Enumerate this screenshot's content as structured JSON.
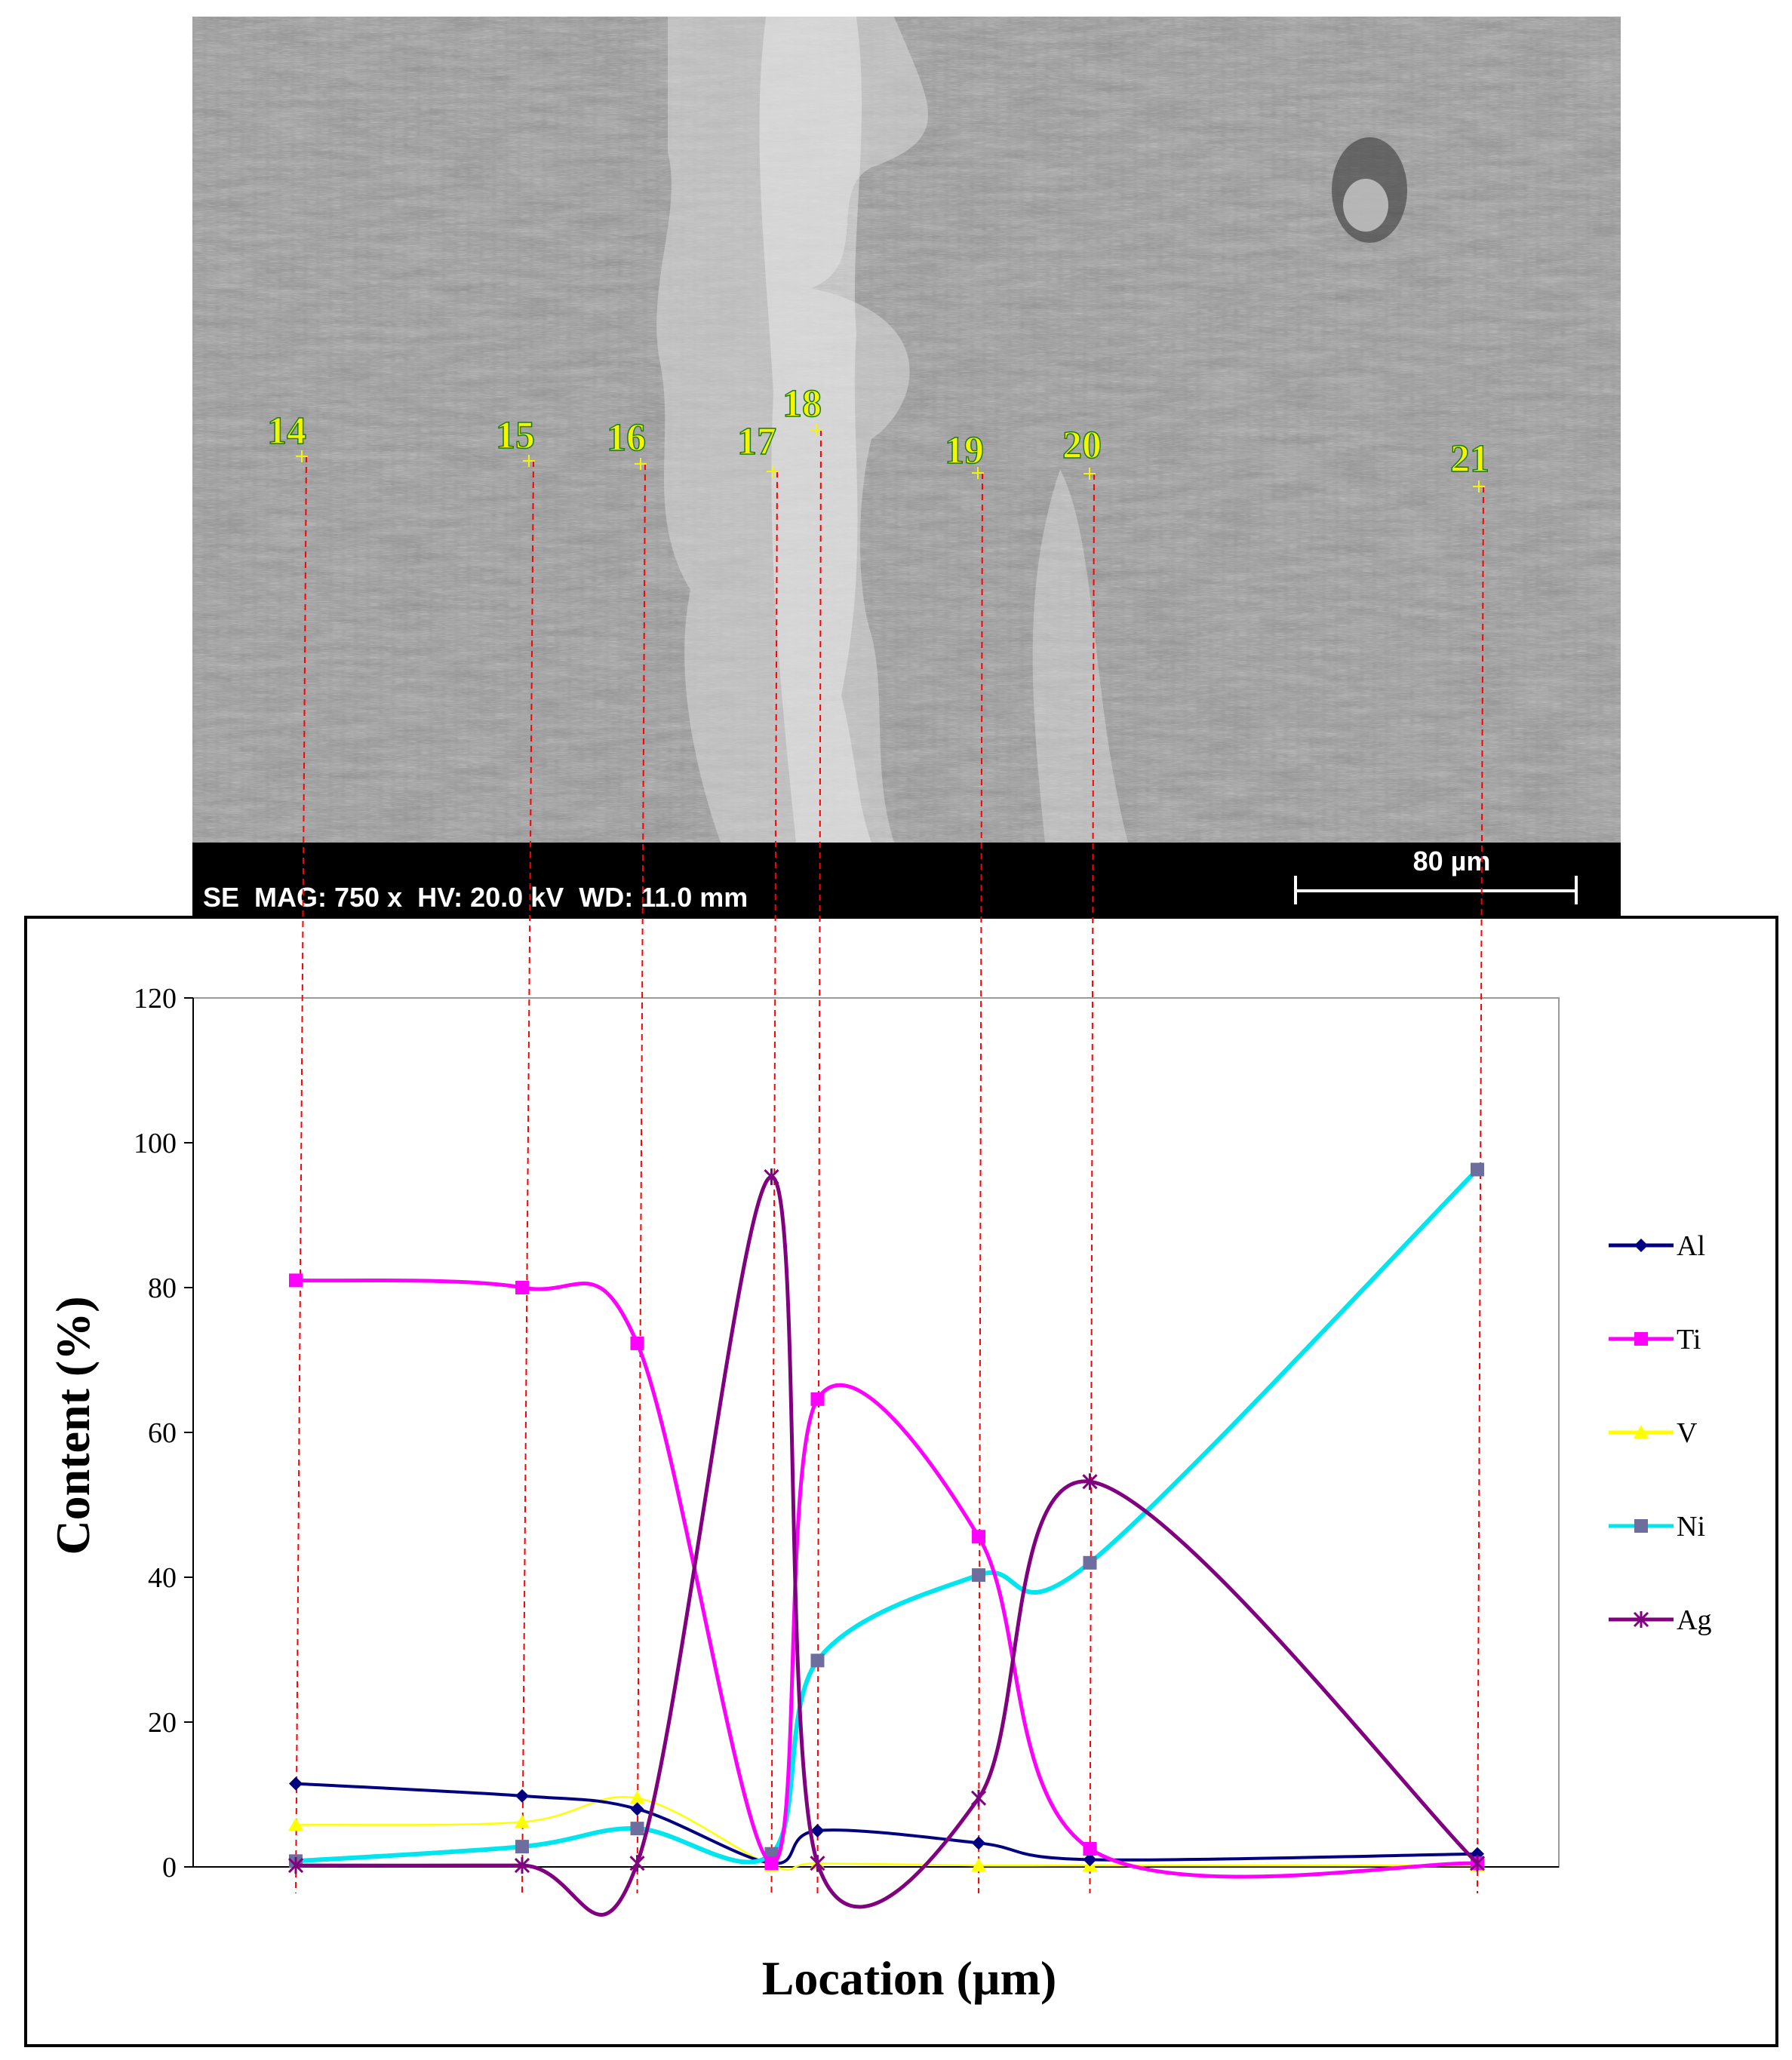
{
  "sem": {
    "info": "SE  MAG: 750 x  HV: 20.0 kV  WD: 11.0 mm",
    "scale_bar": "80 µm",
    "points": [
      "14",
      "15",
      "16",
      "17",
      "18",
      "19",
      "20",
      "21"
    ],
    "colors": {
      "point_label": "#f5f500",
      "point_outline": "#1a7a1a",
      "guide_line": "#ff0000"
    }
  },
  "chart_data": {
    "type": "line",
    "title": "",
    "xlabel": "Location (µm)",
    "ylabel": "Content (%)",
    "ylim": [
      0,
      120
    ],
    "yticks": [
      0,
      20,
      40,
      60,
      80,
      100,
      120
    ],
    "grid": false,
    "legend_placement": "right",
    "x": [
      "14",
      "15",
      "16",
      "17",
      "18",
      "19",
      "20",
      "21"
    ],
    "x_positions_um": [
      0,
      59,
      89,
      124,
      136,
      178,
      207,
      308
    ],
    "series": [
      {
        "name": "Al",
        "color": "#000080",
        "marker": "diamond",
        "values": [
          11.5,
          9.8,
          8.0,
          0.5,
          5.0,
          3.3,
          1.0,
          1.8
        ]
      },
      {
        "name": "Ti",
        "color": "#ff00ff",
        "marker": "square",
        "values": [
          81,
          80,
          72.3,
          0.5,
          64.6,
          45.6,
          2.5,
          0.5
        ]
      },
      {
        "name": "V",
        "color": "#ffff00",
        "marker": "triangle",
        "values": [
          5.8,
          6.2,
          9.5,
          0.2,
          0.5,
          0.2,
          0.2,
          0.2
        ]
      },
      {
        "name": "Ni",
        "color": "#00e5ee",
        "marker": "square",
        "values": [
          0.8,
          2.8,
          5.3,
          1.8,
          28.5,
          40.3,
          42.0,
          96.3
        ]
      },
      {
        "name": "Ag",
        "color": "#800080",
        "marker": "asterisk",
        "values": [
          0.2,
          0.2,
          0.5,
          95.3,
          0.5,
          9.5,
          53.2,
          0.5
        ]
      }
    ]
  }
}
